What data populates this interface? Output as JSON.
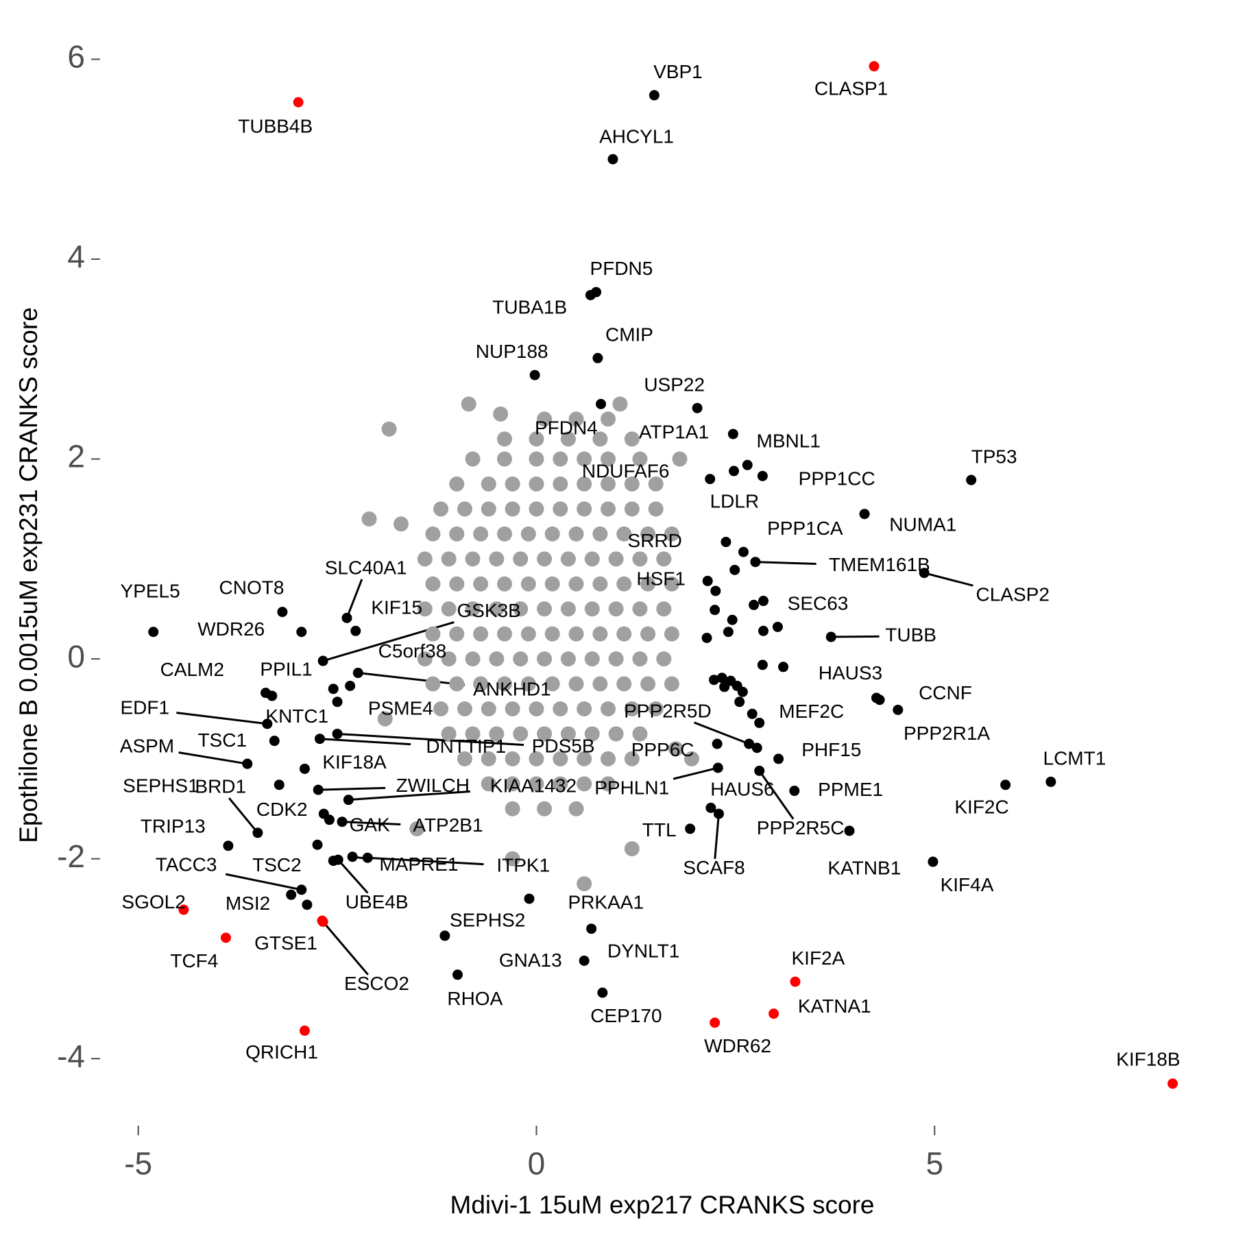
{
  "chart_data": {
    "type": "scatter",
    "xlabel": "Mdivi-1 15uM exp217 CRANKS score",
    "ylabel": "Epothilone B 0.0015uM exp231 CRANKS score",
    "xlim": [
      -5.45,
      8.24
    ],
    "ylim": [
      -4.55,
      6.3
    ],
    "xticks": [
      -5,
      0,
      5
    ],
    "yticks": [
      -4,
      -2,
      0,
      2,
      4,
      6
    ],
    "series": [
      {
        "color": "#a0a0a0",
        "x": [
          0.1,
          0.5,
          0.9,
          -0.4,
          0,
          0.4,
          0.8,
          1.2,
          -0.8,
          -0.4,
          0,
          0.3,
          0.6,
          0.9,
          1.3,
          -1,
          -0.6,
          -0.3,
          0,
          0.3,
          0.6,
          0.9,
          1.2,
          1.5,
          -1.2,
          -0.9,
          -0.6,
          -0.3,
          0,
          0.3,
          0.6,
          0.9,
          1.2,
          1.5,
          -1.3,
          -1,
          -0.7,
          -0.4,
          -0.1,
          0.2,
          0.5,
          0.8,
          1.1,
          1.4,
          1.7,
          -1.4,
          -1.1,
          -0.8,
          -0.5,
          -0.2,
          0.1,
          0.4,
          0.7,
          1,
          1.3,
          1.6,
          -1.3,
          -1,
          -0.7,
          -0.4,
          -0.1,
          0.2,
          0.5,
          0.8,
          1.1,
          1.4,
          1.7,
          -1.4,
          -1.1,
          -0.8,
          -0.5,
          -0.2,
          0.1,
          0.4,
          0.7,
          1,
          1.3,
          1.6,
          -1.3,
          -1,
          -0.7,
          -0.4,
          -0.1,
          0.2,
          0.5,
          0.8,
          1.1,
          1.4,
          1.7,
          -1.4,
          -1.1,
          -0.8,
          -0.5,
          -0.2,
          0.1,
          0.4,
          0.7,
          1,
          1.3,
          1.6,
          -1.3,
          -1,
          -0.7,
          -0.4,
          -0.1,
          0.2,
          0.5,
          0.8,
          1.1,
          1.4,
          1.7,
          -1.2,
          -0.9,
          -0.6,
          -0.3,
          0,
          0.3,
          0.6,
          0.9,
          1.2,
          1.5,
          -1.1,
          -0.8,
          -0.5,
          -0.2,
          0.1,
          0.4,
          0.7,
          1,
          1.3,
          -0.9,
          -0.6,
          -0.3,
          0,
          0.3,
          0.6,
          0.9,
          1.2,
          -0.6,
          -0.3,
          0,
          0.3,
          0.6,
          0.9,
          -0.3,
          0.1,
          0.5,
          -1.85,
          -0.85,
          -0.45,
          1.05,
          1.8,
          -2.1,
          -1.7,
          1.75,
          -1.9,
          0.6,
          1.95,
          -0.3,
          1.2,
          -1.5
        ],
        "values": [
          2.4,
          2.4,
          2.4,
          2.2,
          2.2,
          2.2,
          2.2,
          2.2,
          2,
          2,
          2,
          2,
          2,
          2,
          2,
          1.75,
          1.75,
          1.75,
          1.75,
          1.75,
          1.75,
          1.75,
          1.75,
          1.75,
          1.5,
          1.5,
          1.5,
          1.5,
          1.5,
          1.5,
          1.5,
          1.5,
          1.5,
          1.5,
          1.25,
          1.25,
          1.25,
          1.25,
          1.25,
          1.25,
          1.25,
          1.25,
          1.25,
          1.25,
          1.25,
          1,
          1,
          1,
          1,
          1,
          1,
          1,
          1,
          1,
          1,
          1,
          0.75,
          0.75,
          0.75,
          0.75,
          0.75,
          0.75,
          0.75,
          0.75,
          0.75,
          0.75,
          0.75,
          0.5,
          0.5,
          0.5,
          0.5,
          0.5,
          0.5,
          0.5,
          0.5,
          0.5,
          0.5,
          0.5,
          0.25,
          0.25,
          0.25,
          0.25,
          0.25,
          0.25,
          0.25,
          0.25,
          0.25,
          0.25,
          0.25,
          0,
          0,
          0,
          0,
          0,
          0,
          0,
          0,
          0,
          0,
          0,
          -0.25,
          -0.25,
          -0.25,
          -0.25,
          -0.25,
          -0.25,
          -0.25,
          -0.25,
          -0.25,
          -0.25,
          -0.25,
          -0.5,
          -0.5,
          -0.5,
          -0.5,
          -0.5,
          -0.5,
          -0.5,
          -0.5,
          -0.5,
          -0.5,
          -0.75,
          -0.75,
          -0.75,
          -0.75,
          -0.75,
          -0.75,
          -0.75,
          -0.75,
          -0.75,
          -1,
          -1,
          -1,
          -1,
          -1,
          -1,
          -1,
          -1,
          -1.25,
          -1.25,
          -1.25,
          -1.25,
          -1.25,
          -1.25,
          -1.5,
          -1.5,
          -1.5,
          2.3,
          2.55,
          2.45,
          2.55,
          2.0,
          1.4,
          1.35,
          -0.9,
          -0.6,
          -2.25,
          -1.0,
          -2.0,
          -1.9,
          -1.7
        ]
      },
      {
        "color": "#000000",
        "labels": [
          "VBP1",
          "AHCYL1",
          "PFDN5",
          "TUBA1B",
          "CMIP",
          "NUP188",
          "USP22",
          "PFDN4",
          "ATP1A1",
          "MBNL1",
          "NDUFAF6",
          "PPP1CC",
          "LDLR",
          "TP53",
          "NUMA1",
          "PPP1CA",
          "SRRD",
          "TMEM161B",
          "HSF1",
          "CLASP2",
          "SEC63",
          "TUBB",
          "HAUS3",
          "CCNF",
          "PPP2R1A",
          "MEF2C",
          "PPP2R5D",
          "PHF15",
          "PPP6C",
          "LCMT1",
          "KIF2C",
          "PPME1",
          "PPHLN1",
          "HAUS6",
          "PPP2R5C",
          "TTL",
          "SCAF8",
          "KATNB1",
          "KIF4A",
          "PRKAA1",
          "DYNLT1",
          "GNA13",
          "CEP170",
          "SEPHS2",
          "RHOA",
          "MSI2",
          "TSC2",
          "TACC3",
          "TRIP13",
          "UBE4B",
          "MAPRE1",
          "ITPK1",
          "CDK2",
          "GAK",
          "ATP2B1",
          "BRD1",
          "SEPHS1",
          "ZWILCH",
          "KIAA1432",
          "KIF18A",
          "ASPM",
          "TSC1",
          "DNTTIP1",
          "PDS5B",
          "EDF1",
          "KNTC1",
          "PSME4",
          "CALM2",
          "PPIL1",
          "ANKHD1",
          "C5orf38",
          "GSK3B",
          "KIF15",
          "SLC40A1",
          "CNOT8",
          "WDR26",
          "YPEL5",
          null,
          null,
          null,
          null,
          null,
          null,
          null,
          null,
          null,
          null,
          null,
          null,
          null,
          null,
          null,
          null,
          null,
          null,
          null,
          null,
          null,
          null
        ],
        "x": [
          1.48,
          0.96,
          0.75,
          0.68,
          0.77,
          -0.02,
          2.02,
          0.81,
          2.47,
          2.65,
          2.48,
          2.84,
          2.18,
          5.46,
          4.12,
          2.6,
          2.38,
          2.75,
          2.15,
          4.87,
          2.85,
          3.7,
          4.27,
          4.54,
          4.31,
          2.8,
          2.67,
          3.04,
          2.27,
          6.46,
          5.89,
          3.24,
          2.28,
          2.19,
          2.8,
          1.93,
          2.29,
          3.93,
          4.98,
          -0.09,
          0.69,
          0.6,
          0.83,
          -1.15,
          -0.99,
          -2.88,
          -3.08,
          -2.95,
          -3.87,
          -2.49,
          -2.31,
          -2.12,
          -2.67,
          -2.6,
          -2.44,
          -3.5,
          -3.23,
          -2.74,
          -2.36,
          -2.91,
          -3.63,
          -3.29,
          -2.72,
          -2.5,
          -3.38,
          -2.5,
          -2.34,
          -3.4,
          -3.32,
          -2.24,
          -2.55,
          -2.68,
          -2.27,
          -2.38,
          -3.19,
          -2.95,
          -4.81,
          2.25,
          2.24,
          2.46,
          2.73,
          2.85,
          3.03,
          2.14,
          2.41,
          2.84,
          3.1,
          2.23,
          2.33,
          2.44,
          2.52,
          2.59,
          2.36,
          2.55,
          2.71,
          2.77,
          -2.75,
          -2.55,
          2.49
        ],
        "values": [
          5.64,
          5,
          3.67,
          3.64,
          3.01,
          2.84,
          2.51,
          2.55,
          2.25,
          1.94,
          1.88,
          1.83,
          1.8,
          1.79,
          1.45,
          1.07,
          1.17,
          0.97,
          0.78,
          0.86,
          0.58,
          0.22,
          -0.39,
          -0.51,
          -0.41,
          -0.64,
          -0.85,
          -1,
          -0.85,
          -1.23,
          -1.26,
          -1.32,
          -1.09,
          -1.49,
          -1.12,
          -1.7,
          -1.55,
          -1.72,
          -2.03,
          -2.4,
          -2.7,
          -3.02,
          -3.34,
          -2.77,
          -3.16,
          -2.46,
          -2.36,
          -2.31,
          -1.87,
          -2.01,
          -1.98,
          -1.99,
          -1.55,
          -1.61,
          -1.63,
          -1.74,
          -1.26,
          -1.31,
          -1.41,
          -1.1,
          -1.05,
          -0.82,
          -0.8,
          -0.75,
          -0.65,
          -0.43,
          -0.27,
          -0.34,
          -0.37,
          -0.14,
          -0.3,
          -0.02,
          0.28,
          0.41,
          0.47,
          0.27,
          0.27,
          0.68,
          0.49,
          0.39,
          0.54,
          0.28,
          0.32,
          0.21,
          0.27,
          -0.06,
          -0.08,
          -0.21,
          -0.19,
          -0.22,
          -0.27,
          -0.33,
          -0.28,
          -0.43,
          -0.55,
          -0.89,
          -1.86,
          -2.02,
          0.89
        ]
      },
      {
        "color": "#ff0000",
        "labels": [
          "TUBB4B",
          "CLASP1",
          "KIF2A",
          "KATNA1",
          "WDR62",
          "KIF18B",
          "QRICH1",
          "TCF4",
          "SGOL2",
          "GTSE1",
          "ESCO2"
        ],
        "x": [
          -2.99,
          4.24,
          3.25,
          2.98,
          2.24,
          7.99,
          -2.91,
          -3.9,
          -4.43,
          -2.69,
          -2.68
        ],
        "values": [
          5.57,
          5.93,
          -3.23,
          -3.55,
          -3.64,
          -4.25,
          -3.72,
          -2.79,
          -2.51,
          -2.62,
          -2.63
        ]
      }
    ]
  }
}
